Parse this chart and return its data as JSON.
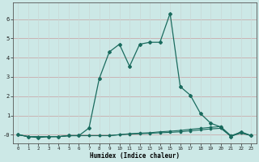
{
  "title": "",
  "xlabel": "Humidex (Indice chaleur)",
  "bg_color": "#cce8e6",
  "line_color": "#1a6b5e",
  "grid_color_major": "#b8d8d5",
  "grid_color_minor": "#d4ecea",
  "x_values": [
    0,
    1,
    2,
    3,
    4,
    5,
    6,
    7,
    8,
    9,
    10,
    11,
    12,
    13,
    14,
    15,
    16,
    17,
    18,
    19,
    20,
    21,
    22,
    23
  ],
  "y_main": [
    0.0,
    -0.1,
    -0.15,
    -0.1,
    -0.1,
    -0.05,
    -0.05,
    0.35,
    2.9,
    4.3,
    4.7,
    3.55,
    4.7,
    4.8,
    4.8,
    6.3,
    2.5,
    2.05,
    1.1,
    0.6,
    0.4,
    -0.1,
    0.15,
    -0.05
  ],
  "y_line2": [
    0.0,
    -0.1,
    -0.1,
    -0.1,
    -0.1,
    -0.05,
    -0.05,
    -0.05,
    -0.05,
    -0.05,
    0.0,
    0.05,
    0.08,
    0.1,
    0.15,
    0.18,
    0.22,
    0.28,
    0.33,
    0.38,
    0.42,
    -0.05,
    0.12,
    -0.05
  ],
  "y_line3": [
    0.0,
    -0.1,
    -0.1,
    -0.1,
    -0.1,
    -0.05,
    -0.05,
    -0.05,
    -0.05,
    -0.05,
    0.0,
    0.03,
    0.05,
    0.07,
    0.1,
    0.12,
    0.15,
    0.2,
    0.25,
    0.3,
    0.33,
    -0.08,
    0.08,
    -0.05
  ],
  "ylim": [
    -0.45,
    6.85
  ],
  "xlim": [
    -0.5,
    23.5
  ],
  "yticks": [
    0,
    1,
    2,
    3,
    4,
    5,
    6
  ],
  "ytick_labels": [
    "-0",
    "1",
    "2",
    "3",
    "4",
    "5",
    "6"
  ],
  "xticks": [
    0,
    1,
    2,
    3,
    4,
    5,
    6,
    7,
    8,
    9,
    10,
    11,
    12,
    13,
    14,
    15,
    16,
    17,
    18,
    19,
    20,
    21,
    22,
    23
  ]
}
